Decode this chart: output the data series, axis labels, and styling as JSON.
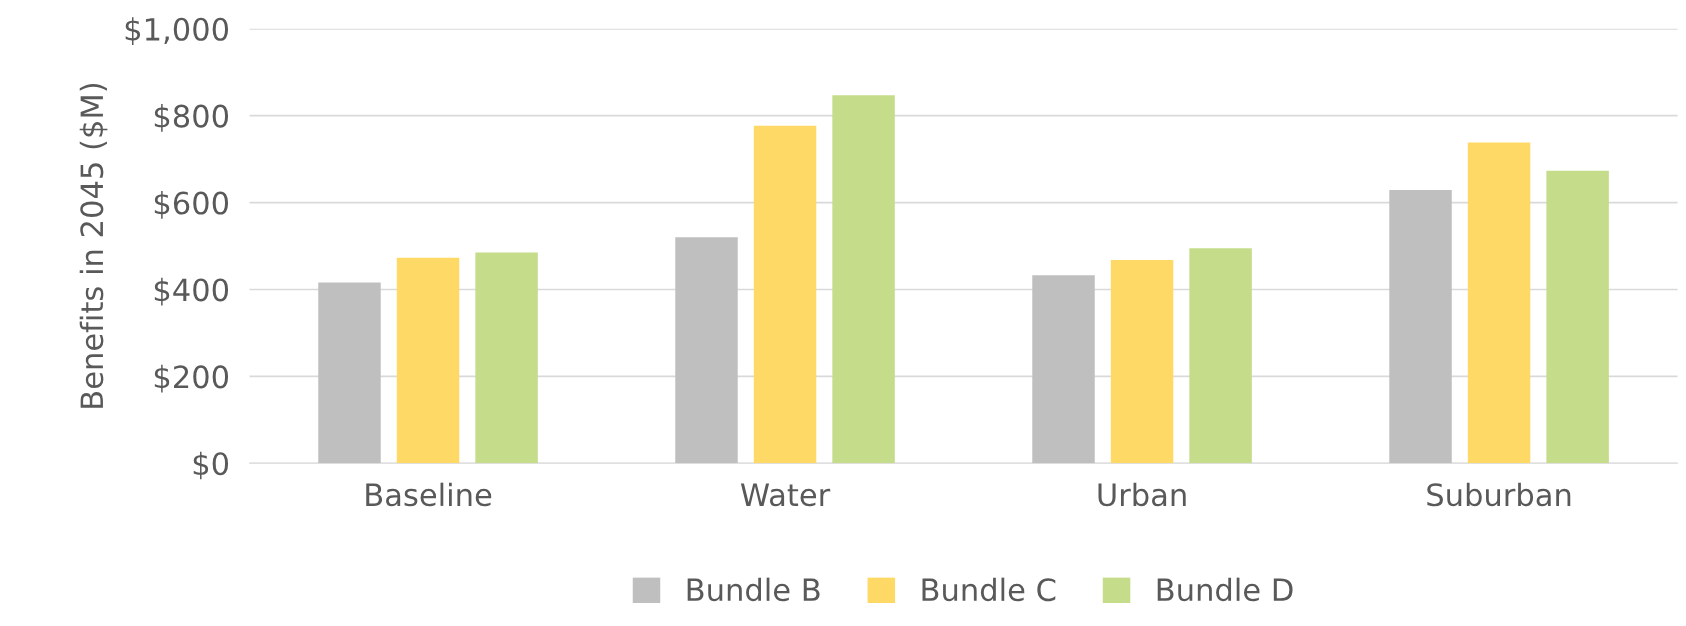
{
  "chart_data": {
    "type": "bar",
    "ylabel": "Benefits in 2045 ($M)",
    "categories": [
      "Baseline",
      "Water",
      "Urban",
      "Suburban"
    ],
    "series": [
      {
        "name": "Bundle B",
        "color": "#bfbfbf",
        "values": [
          416,
          520,
          433,
          629
        ]
      },
      {
        "name": "Bundle C",
        "color": "#ffd966",
        "values": [
          473,
          777,
          468,
          738
        ]
      },
      {
        "name": "Bundle D",
        "color": "#c5dc8a",
        "values": [
          485,
          847,
          495,
          673
        ]
      }
    ],
    "ylim": [
      0,
      1000
    ],
    "yticks": [
      {
        "value": 0,
        "label": "$0"
      },
      {
        "value": 200,
        "label": "$200"
      },
      {
        "value": 400,
        "label": "$400"
      },
      {
        "value": 600,
        "label": "$600"
      },
      {
        "value": 800,
        "label": "$800"
      },
      {
        "value": 1000,
        "label": "$1,000"
      }
    ],
    "grid": "y",
    "legend": "bottom"
  }
}
